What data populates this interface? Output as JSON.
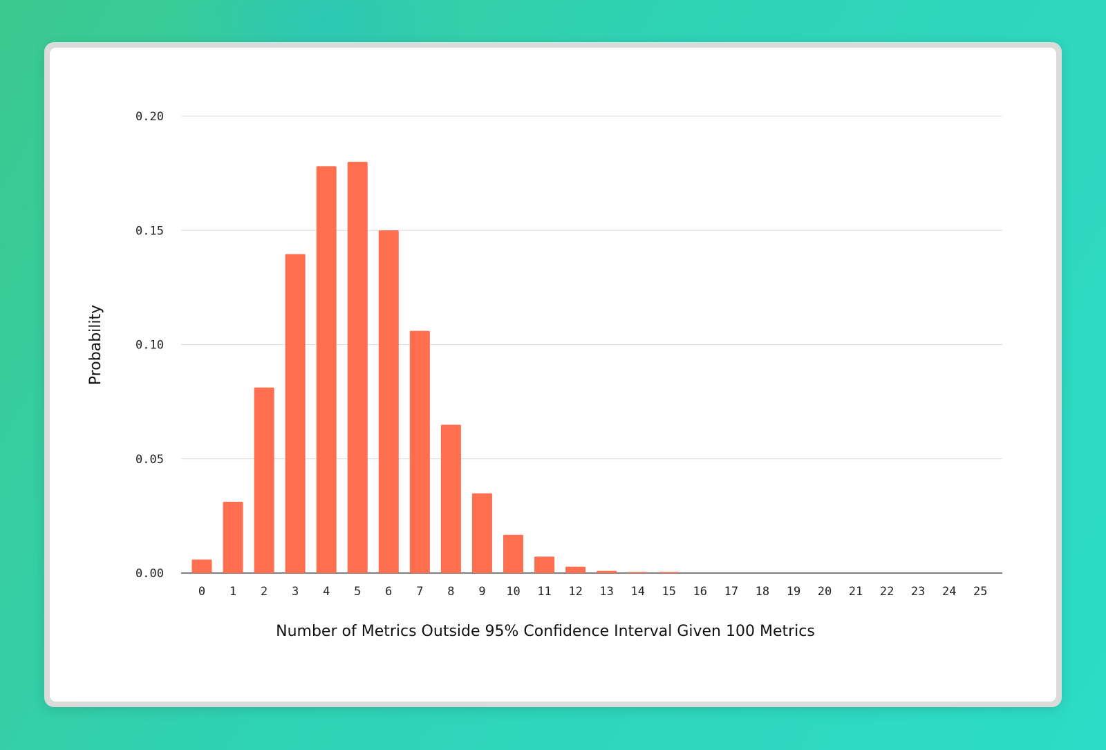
{
  "colors": {
    "bar": "#ff6e4f",
    "grid": "#dcdcdc",
    "axis": "#555555"
  },
  "chart_data": {
    "type": "bar",
    "title": "",
    "xlabel": "Number of Metrics Outside 95% Confidence Interval Given 100 Metrics",
    "ylabel": "Probability",
    "categories": [
      "0",
      "1",
      "2",
      "3",
      "4",
      "5",
      "6",
      "7",
      "8",
      "9",
      "10",
      "11",
      "12",
      "13",
      "14",
      "15",
      "16",
      "17",
      "18",
      "19",
      "20",
      "21",
      "22",
      "23",
      "24",
      "25"
    ],
    "values": [
      0.0059,
      0.0312,
      0.0812,
      0.1396,
      0.1781,
      0.18,
      0.15,
      0.106,
      0.0649,
      0.0349,
      0.0167,
      0.0072,
      0.0028,
      0.001,
      0.0003,
      0.0001,
      0,
      0,
      0,
      0,
      0,
      0,
      0,
      0,
      0,
      0
    ],
    "ylim": [
      0,
      0.2
    ],
    "yticks": [
      "0.00",
      "0.05",
      "0.10",
      "0.15",
      "0.20"
    ],
    "grid": true,
    "legend": "none"
  }
}
